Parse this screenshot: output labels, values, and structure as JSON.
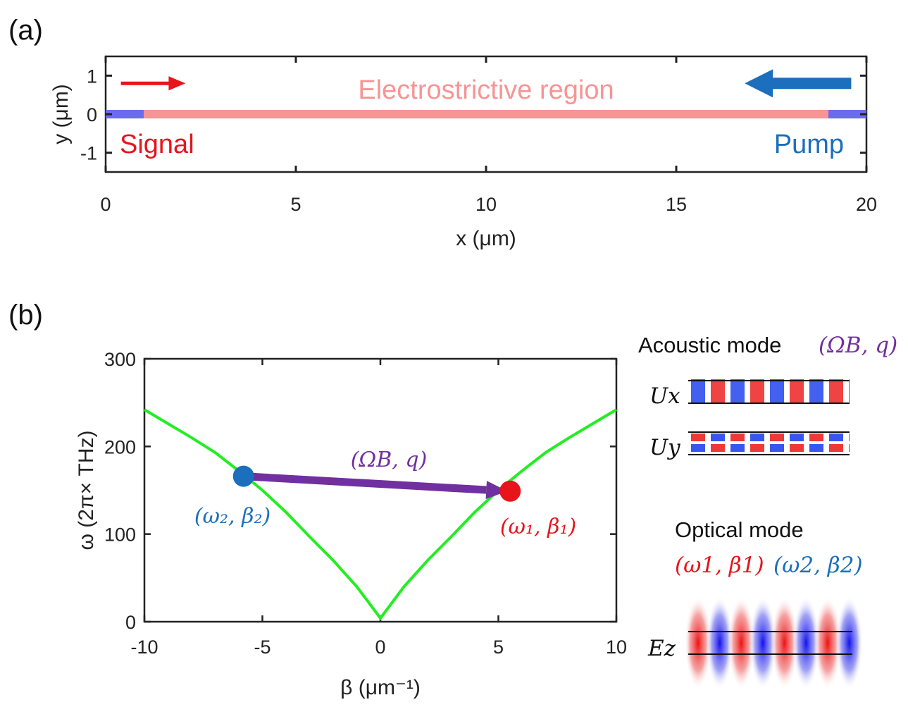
{
  "panel_a_label": "(a)",
  "panel_b_label": "(b)",
  "colors": {
    "signal": "#e8141b",
    "pump": "#1b6fbc",
    "region": "#f79494",
    "wave_ends": "#6b6bef",
    "dispersion": "#22ee22",
    "acoustic": "#7030a0"
  },
  "chart_data": [
    {
      "type": "line",
      "xlabel": "x (μm)",
      "ylabel": "y (μm)",
      "xlim": [
        0,
        20
      ],
      "ylim": [
        -1.5,
        1.5
      ],
      "x_ticks": [
        "0",
        "5",
        "10",
        "15",
        "20"
      ],
      "y_ticks": [
        "1",
        "0",
        "-1"
      ],
      "series": [
        {
          "segments": [
            [
              0,
              1
            ],
            [
              19,
              20
            ]
          ],
          "y": 0
        },
        {
          "name": "Electrostrictive region",
          "segments": [
            [
              1,
              19
            ]
          ],
          "y": 0
        }
      ],
      "annotations": {
        "region_label": "Electrostrictive region",
        "signal_label": "Signal",
        "pump_label": "Pump"
      },
      "arrows": {
        "signal": {
          "from": [
            0.4,
            0.8
          ],
          "to": [
            2.1,
            0.8
          ],
          "direction": "right"
        },
        "pump": {
          "from": [
            19.6,
            0.8
          ],
          "to": [
            16.8,
            0.8
          ],
          "direction": "left"
        }
      }
    },
    {
      "type": "line",
      "xlabel": "β (μm⁻¹)",
      "ylabel": "ω (2π× THz)",
      "xlim": [
        -10,
        10
      ],
      "ylim": [
        0,
        300
      ],
      "x_ticks": [
        "-10",
        "-5",
        "0",
        "5",
        "10"
      ],
      "y_ticks": [
        "300",
        "200",
        "100",
        "0"
      ],
      "series": [
        {
          "x": [
            -10,
            -9,
            -8,
            -7,
            -6,
            -5,
            -4,
            -3,
            -2,
            -1,
            -0.5,
            0,
            0.5,
            1,
            2,
            3,
            4,
            5,
            6,
            7,
            8,
            9,
            10
          ],
          "y": [
            242,
            226,
            210,
            193,
            172,
            150,
            125,
            97,
            70,
            40,
            22,
            4,
            22,
            40,
            70,
            97,
            125,
            150,
            172,
            193,
            210,
            226,
            242
          ]
        }
      ],
      "points": [
        {
          "label": "(ω₂, β₂)",
          "x": -5.8,
          "y": 166,
          "color": "#1b6fbc"
        },
        {
          "label": "(ω₁, β₁)",
          "x": 5.5,
          "y": 149,
          "color": "#e8141b"
        }
      ],
      "arrow_label": "(ΩB, q)"
    }
  ],
  "side": {
    "acoustic_title": "Acoustic mode",
    "acoustic_params": "(ΩB, q)",
    "ux_label": "Ux",
    "uy_label": "Uy",
    "optical_title": "Optical mode",
    "optical_red": "(ω1, β1)",
    "optical_blue": "(ω2, β2)",
    "ez_label": "Ez"
  }
}
